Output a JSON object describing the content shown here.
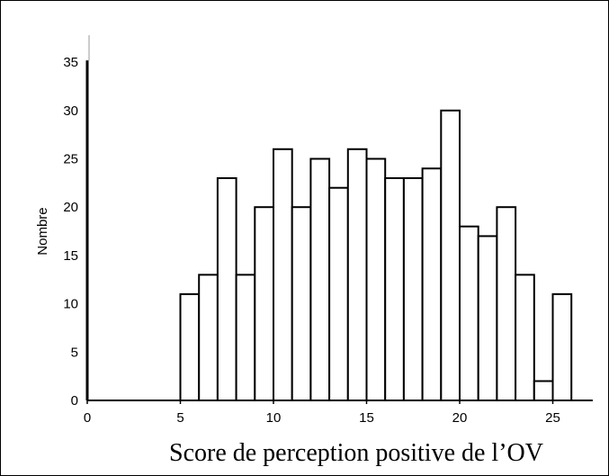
{
  "chart_data": {
    "type": "bar",
    "title": "",
    "xlabel": "Score de perception positive de l’OV",
    "ylabel": "Nombre",
    "xlim": [
      0,
      27
    ],
    "ylim": [
      0,
      35
    ],
    "xticks": [
      0,
      5,
      10,
      15,
      20,
      25
    ],
    "yticks": [
      0,
      5,
      10,
      15,
      20,
      25,
      30,
      35
    ],
    "bin_width": 1,
    "bins": [
      {
        "start": 5,
        "value": 11
      },
      {
        "start": 6,
        "value": 13
      },
      {
        "start": 7,
        "value": 23
      },
      {
        "start": 8,
        "value": 13
      },
      {
        "start": 9,
        "value": 20
      },
      {
        "start": 10,
        "value": 26
      },
      {
        "start": 11,
        "value": 20
      },
      {
        "start": 12,
        "value": 25
      },
      {
        "start": 13,
        "value": 22
      },
      {
        "start": 14,
        "value": 26
      },
      {
        "start": 15,
        "value": 25
      },
      {
        "start": 16,
        "value": 23
      },
      {
        "start": 17,
        "value": 23
      },
      {
        "start": 18,
        "value": 24
      },
      {
        "start": 19,
        "value": 30
      },
      {
        "start": 20,
        "value": 18
      },
      {
        "start": 21,
        "value": 17
      },
      {
        "start": 22,
        "value": 20
      },
      {
        "start": 23,
        "value": 13
      },
      {
        "start": 24,
        "value": 2
      },
      {
        "start": 25,
        "value": 11
      }
    ],
    "grid": false,
    "legend": "none"
  }
}
